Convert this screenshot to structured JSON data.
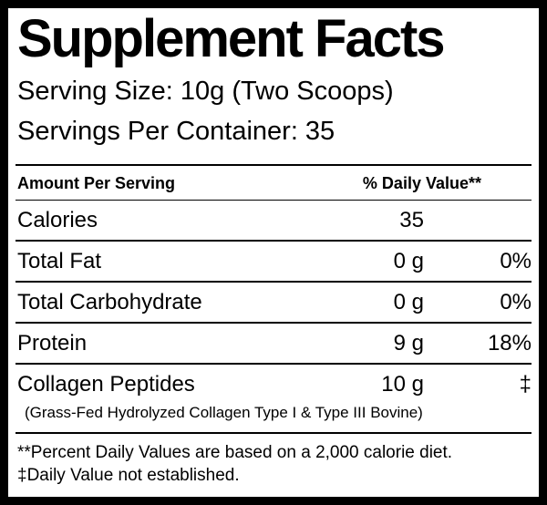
{
  "title": "Supplement Facts",
  "serving_info": {
    "serving_size": "Serving Size: 10g (Two Scoops)",
    "servings_per_container": "Servings Per Container: 35"
  },
  "table": {
    "header": {
      "amount_label": "Amount Per Serving",
      "daily_value_label": "% Daily Value**"
    },
    "rows": [
      {
        "name": "Calories",
        "amount": "35",
        "daily_value": ""
      },
      {
        "name": "Total Fat",
        "amount": "0 g",
        "daily_value": "0%"
      },
      {
        "name": "Total Carbohydrate",
        "amount": "0 g",
        "daily_value": "0%"
      },
      {
        "name": "Protein",
        "amount": "9 g",
        "daily_value": "18%"
      }
    ]
  },
  "ingredient": {
    "name": "Collagen Peptides",
    "amount": "10 g",
    "daily_value": "‡",
    "description": "(Grass-Fed Hydrolyzed Collagen Type I & Type III Bovine)"
  },
  "footnotes": [
    "**Percent Daily Values are based on a 2,000 calorie diet.",
    "‡Daily Value not established."
  ],
  "colors": {
    "text": "#000000",
    "background": "#ffffff",
    "border": "#000000"
  }
}
